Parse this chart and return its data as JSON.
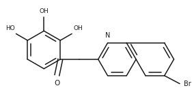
{
  "bg_color": "#ffffff",
  "line_color": "#1a1a1a",
  "line_width": 1.1,
  "font_size": 6.5,
  "fig_width": 2.81,
  "fig_height": 1.48,
  "dpi": 100,
  "xlim": [
    0,
    281
  ],
  "ylim": [
    0,
    148
  ]
}
